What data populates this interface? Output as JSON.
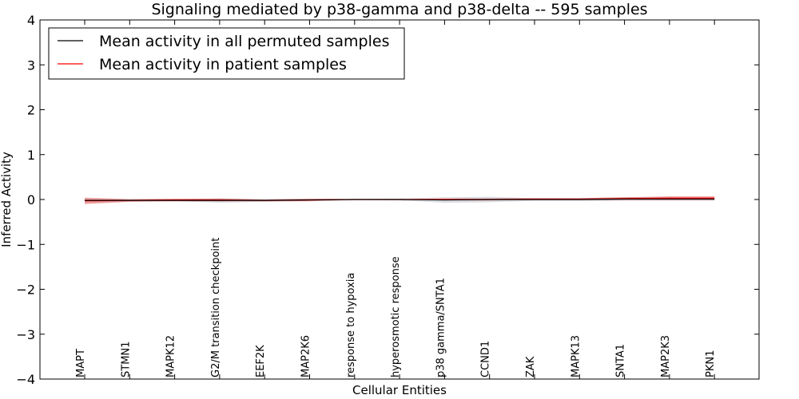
{
  "chart_data": {
    "type": "line",
    "title": "Signaling mediated by p38-gamma and p38-delta -- 595 samples",
    "xlabel": "Cellular Entities",
    "ylabel": "Inferred Activity",
    "ylim": [
      -4,
      4
    ],
    "yticks": [
      4,
      3,
      2,
      1,
      0,
      -1,
      -2,
      -3,
      -4
    ],
    "ytick_labels": [
      "4",
      "3",
      "2",
      "1",
      "0",
      "−1",
      "−2",
      "−3",
      "−4"
    ],
    "categories": [
      "MAPT",
      "STMN1",
      "MAPK12",
      "G2/M transition checkpoint",
      "EEF2K",
      "MAP2K6",
      "response to hypoxia",
      "hyperosmotic response",
      "p38 gamma/SNTA1",
      "CCND1",
      "ZAK",
      "MAPK13",
      "SNTA1",
      "MAP2K3",
      "PKN1"
    ],
    "legend_position": "top-left",
    "series": [
      {
        "name": "Mean activity in all permuted samples",
        "color": "#000000",
        "values": [
          -0.02,
          -0.02,
          -0.02,
          -0.02,
          -0.02,
          -0.01,
          0.0,
          0.0,
          -0.01,
          0.0,
          0.0,
          0.0,
          0.01,
          0.01,
          0.01
        ],
        "band": [
          0.02,
          0.02,
          0.02,
          0.05,
          0.03,
          0.02,
          0.01,
          0.02,
          0.06,
          0.06,
          0.03,
          0.03,
          0.04,
          0.04,
          0.04
        ]
      },
      {
        "name": "Mean activity in patient samples",
        "color": "#ff0000",
        "values": [
          -0.03,
          -0.02,
          -0.01,
          -0.01,
          -0.02,
          -0.01,
          0.0,
          0.0,
          0.0,
          0.0,
          0.01,
          0.01,
          0.02,
          0.03,
          0.03
        ],
        "band": [
          0.07,
          0.03,
          0.03,
          0.03,
          0.02,
          0.03,
          0.01,
          0.01,
          0.02,
          0.02,
          0.02,
          0.02,
          0.03,
          0.04,
          0.04
        ]
      }
    ]
  }
}
